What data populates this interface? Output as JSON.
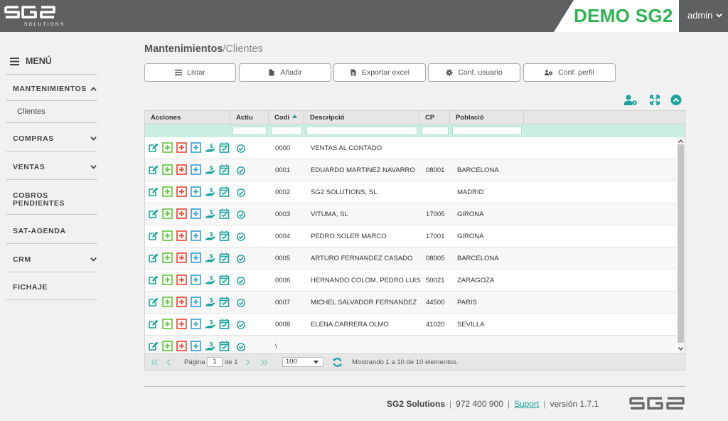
{
  "header": {
    "logo_text": "SG2",
    "logo_sub": "SOLUTIONS",
    "demo_label": "DEMO SG2",
    "user": "admin"
  },
  "sidebar": {
    "menu_label": "MENÚ",
    "items": [
      {
        "label": "MANTENIMIENTOS",
        "expanded": true,
        "sub": [
          "Clientes"
        ]
      },
      {
        "label": "COMPRAS",
        "expanded": false
      },
      {
        "label": "VENTAS",
        "expanded": false
      },
      {
        "label": "COBROS PENDIENTES"
      },
      {
        "label": "SAT-AGENDA"
      },
      {
        "label": "CRM",
        "expanded": false
      },
      {
        "label": "FICHAJE"
      }
    ]
  },
  "breadcrumb": {
    "main": "Mantenimientos",
    "separator": "/",
    "sub": "Clientes"
  },
  "toolbar": {
    "buttons": [
      {
        "label": "Listar",
        "icon": "list-icon"
      },
      {
        "label": "Añadir",
        "icon": "file-icon"
      },
      {
        "label": "Exportar excel",
        "icon": "excel-file-icon"
      },
      {
        "label": "Conf. usuario",
        "icon": "gear-icon"
      },
      {
        "label": "Conf. perfil",
        "icon": "users-gear-icon"
      }
    ]
  },
  "grid": {
    "columns": [
      "Acciones",
      "Actiu",
      "Codi",
      "Descripció",
      "CP",
      "Població"
    ],
    "sorted_column": "Codi",
    "rows": [
      {
        "code": "0000",
        "description": "VENTAS AL CONTADO",
        "cp": "",
        "city": ""
      },
      {
        "code": "0001",
        "description": "EDUARDO MARTINEZ NAVARRO",
        "cp": "08001",
        "city": "BARCELONA"
      },
      {
        "code": "0002",
        "description": "SG2 SOLUTIONS, SL",
        "cp": "",
        "city": "MADRID"
      },
      {
        "code": "0003",
        "description": "VITUMA, SL",
        "cp": "17005",
        "city": "GIRONA"
      },
      {
        "code": "0004",
        "description": "PEDRO SOLER MARCO",
        "cp": "17001",
        "city": "GIRONA"
      },
      {
        "code": "0005",
        "description": "ARTURO FERNANDEZ CASADO",
        "cp": "08005",
        "city": "BARCELONA"
      },
      {
        "code": "0006",
        "description": "HERNANDO COLOM, PEDRO LUIS",
        "cp": "50021",
        "city": "ZARAGOZA"
      },
      {
        "code": "0007",
        "description": "MICHEL SALVADOR FERNANDEZ",
        "cp": "44500",
        "city": "PARIS"
      },
      {
        "code": "0008",
        "description": "ELENA CARRERA OLMO",
        "cp": "41020",
        "city": "SEVILLA"
      },
      {
        "code": "\\",
        "description": "",
        "cp": "",
        "city": ""
      }
    ]
  },
  "pager": {
    "page_label": "Página",
    "page": "1",
    "of_label": "de 1",
    "page_size": "100",
    "summary": "Mostrando 1 a 10 de 10 elementos."
  },
  "footer": {
    "company": "SG2 Solutions",
    "phone": "972 400 900",
    "support": "Suport",
    "version": "versión 1.7.1",
    "sep": "|"
  },
  "colors": {
    "topbar": "#5f6062",
    "brand_green": "#2fb352",
    "accent_teal": "#1aa39a",
    "action_green": "#5ec63a",
    "action_red": "#e8452c",
    "action_blue": "#2f9fd6"
  }
}
